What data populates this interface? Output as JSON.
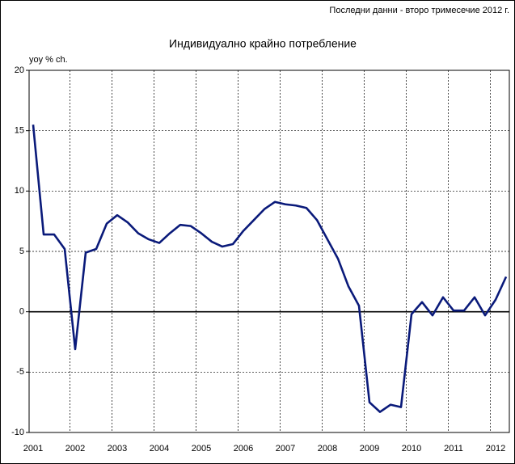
{
  "chart_data": {
    "type": "line",
    "note": "Последни данни - второ тримесечие 2012 г.",
    "title": "Индивидуално крайно потребление",
    "y_label": "yoy % ch.",
    "categories": [
      "2001",
      null,
      null,
      null,
      "2002",
      null,
      null,
      null,
      "2003",
      null,
      null,
      null,
      "2004",
      null,
      null,
      null,
      "2005",
      null,
      null,
      null,
      "2006",
      null,
      null,
      null,
      "2007",
      null,
      null,
      null,
      "2008",
      null,
      null,
      null,
      "2009",
      null,
      null,
      null,
      "2010",
      null,
      null,
      null,
      "2011",
      null,
      null,
      null,
      "2012",
      null
    ],
    "series": [
      {
        "name": "Индивидуално крайно потребление",
        "color": "#0a1a7a",
        "values": [
          15.5,
          6.4,
          6.4,
          5.2,
          -3.1,
          4.9,
          5.2,
          7.3,
          8.0,
          7.4,
          6.5,
          6.0,
          5.7,
          6.5,
          7.2,
          7.1,
          6.5,
          5.8,
          5.4,
          5.6,
          6.7,
          7.6,
          8.5,
          9.1,
          8.9,
          8.8,
          8.6,
          7.6,
          6.0,
          4.4,
          2.1,
          0.5,
          -7.5,
          -8.3,
          -7.7,
          -7.9,
          -0.2,
          0.8,
          -0.3,
          1.2,
          0.1,
          0.1,
          1.2,
          -0.3,
          1.0,
          2.9
        ]
      }
    ],
    "ylim": [
      -10,
      20
    ],
    "yticks": [
      -10,
      -5,
      0,
      5,
      10,
      15,
      20
    ],
    "grid": true
  }
}
